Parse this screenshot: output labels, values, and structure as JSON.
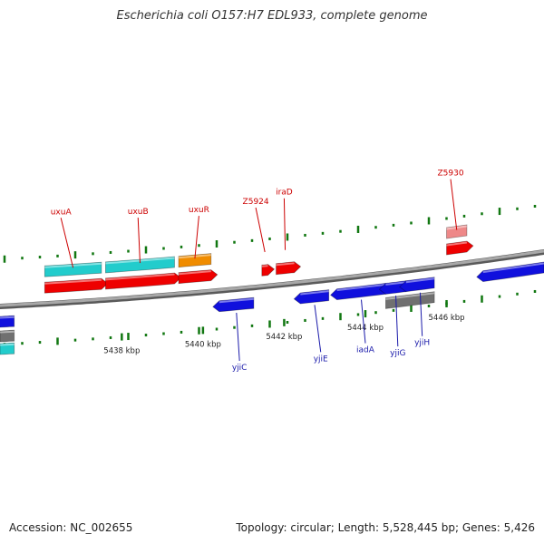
{
  "title": "Escherichia coli O157:H7 EDL933, complete genome",
  "footer": {
    "accession": "Accession: NC_002655",
    "summary": "Topology: circular; Length: 5,528,445 bp; Genes: 5,426"
  },
  "colors": {
    "backbone": "#8a8a8a",
    "forward_gene": "#ee0000",
    "reverse_gene": "#1010dd",
    "cyan_feature": "#22cccc",
    "orange_feature": "#f08c00",
    "gray_feature": "#707070",
    "pink_feature": "#ee8888",
    "gc_tick": "#117711",
    "forward_label": "#cc0000",
    "reverse_label": "#1a1aaa"
  },
  "chart_data": {
    "type": "genome_map",
    "x_unit": "kbp",
    "xlim": [
      5435,
      5448.4
    ],
    "scale_ticks": [
      {
        "value": 5438,
        "label": "5438 kbp"
      },
      {
        "value": 5440,
        "label": "5440 kbp"
      },
      {
        "value": 5442,
        "label": "5442 kbp"
      },
      {
        "value": 5444,
        "label": "5444 kbp"
      },
      {
        "value": 5446,
        "label": "5446 kbp"
      }
    ],
    "features": [
      {
        "strand": "+",
        "color": "forward_gene",
        "start": 5436.1,
        "end": 5437.5,
        "label": "uxuA",
        "label_pos": 5436.5
      },
      {
        "strand": "+",
        "color": "forward_gene",
        "start": 5437.6,
        "end": 5439.3,
        "label": "uxuB",
        "label_pos": 5438.4
      },
      {
        "strand": "+",
        "color": "forward_gene",
        "start": 5439.4,
        "end": 5440.2,
        "label": "uxuR",
        "label_pos": 5439.9
      },
      {
        "strand": "+",
        "color": "forward_gene",
        "start": 5441.45,
        "end": 5441.6,
        "label": "Z5924",
        "label_pos": 5441.3
      },
      {
        "strand": "+",
        "color": "forward_gene",
        "start": 5441.8,
        "end": 5442.25,
        "label": "iraD",
        "label_pos": 5442.0
      },
      {
        "strand": "+",
        "color": "forward_gene",
        "start": 5446.0,
        "end": 5446.5,
        "label": "Z5930",
        "label_pos": 5446.1
      },
      {
        "strand": "+",
        "color": "cyan_feature",
        "start": 5436.1,
        "end": 5437.5,
        "row": 2
      },
      {
        "strand": "+",
        "color": "cyan_feature",
        "start": 5437.6,
        "end": 5439.3,
        "row": 2
      },
      {
        "strand": "+",
        "color": "orange_feature",
        "start": 5439.4,
        "end": 5440.2,
        "row": 2
      },
      {
        "strand": "+",
        "color": "pink_feature",
        "start": 5446.0,
        "end": 5446.5,
        "row": 2
      },
      {
        "strand": "-",
        "color": "reverse_gene",
        "start": 5440.4,
        "end": 5441.25,
        "label": "yjiC",
        "label_pos": 5440.9
      },
      {
        "strand": "-",
        "color": "reverse_gene",
        "start": 5442.4,
        "end": 5443.1,
        "label": "yjiE",
        "label_pos": 5442.9
      },
      {
        "strand": "-",
        "color": "reverse_gene",
        "start": 5443.3,
        "end": 5444.5,
        "label": "iadA",
        "label_pos": 5444.0
      },
      {
        "strand": "-",
        "color": "reverse_gene",
        "start": 5444.5,
        "end": 5445.0,
        "label": "yjiG",
        "label_pos": 5444.8
      },
      {
        "strand": "-",
        "color": "reverse_gene",
        "start": 5445.0,
        "end": 5445.7,
        "label": "yjiH",
        "label_pos": 5445.4
      },
      {
        "strand": "-",
        "color": "reverse_gene",
        "start": 5446.9,
        "end": 5448.4
      },
      {
        "strand": "-",
        "color": "gray_feature",
        "start": 5444.5,
        "end": 5445.7,
        "row": 2
      },
      {
        "strand": "-",
        "color": "reverse_gene",
        "start": 5435.0,
        "end": 5435.35
      },
      {
        "strand": "-",
        "color": "gray_feature",
        "start": 5435.0,
        "end": 5435.35,
        "row": 2
      },
      {
        "strand": "-",
        "color": "cyan_feature",
        "start": 5435.0,
        "end": 5435.35,
        "row": 3
      }
    ]
  }
}
